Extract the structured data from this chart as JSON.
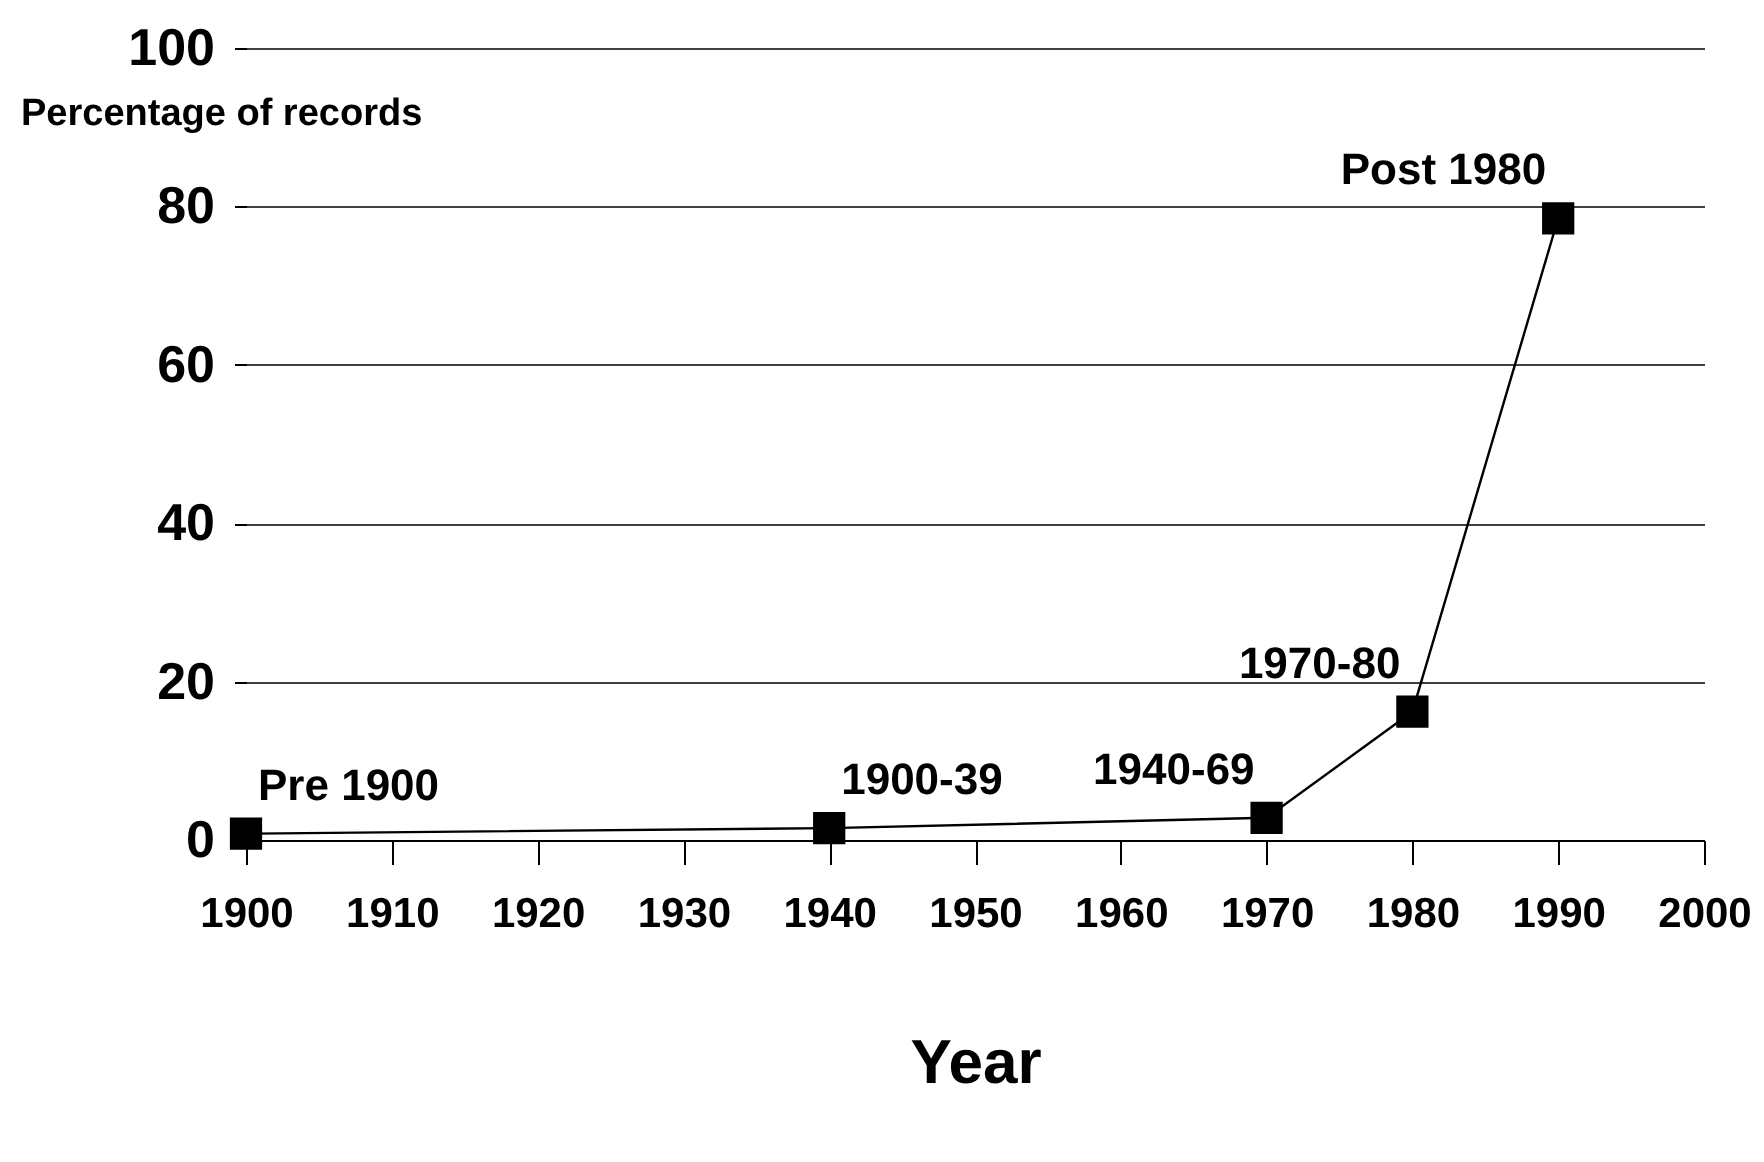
{
  "chart_data": {
    "type": "line",
    "xlabel": "Year",
    "ylabel": "Percentage of records",
    "x": [
      1900,
      1940,
      1970,
      1980,
      1990
    ],
    "series": [
      {
        "color": "#000000",
        "values": [
          0.8,
          1.5,
          2.8,
          16.2,
          78.5
        ]
      }
    ],
    "xlim": [
      1900,
      2000
    ],
    "xticks": [
      1900,
      1910,
      1920,
      1930,
      1940,
      1950,
      1960,
      1970,
      1980,
      1990,
      2000
    ],
    "ylim": [
      0,
      100
    ],
    "yticks": [
      0,
      20,
      40,
      60,
      80,
      100
    ],
    "grid": "y",
    "marker": "square",
    "line_style": "solid",
    "annotations": [
      {
        "text": "Pre 1900",
        "x": 1900,
        "y": 0.8
      },
      {
        "text": "1900-39",
        "x": 1940,
        "y": 1.5
      },
      {
        "text": "1940-69",
        "x": 1970,
        "y": 2.8
      },
      {
        "text": "1970-80",
        "x": 1980,
        "y": 16.2
      },
      {
        "text": "Post 1980",
        "x": 1990,
        "y": 78.5
      }
    ]
  }
}
